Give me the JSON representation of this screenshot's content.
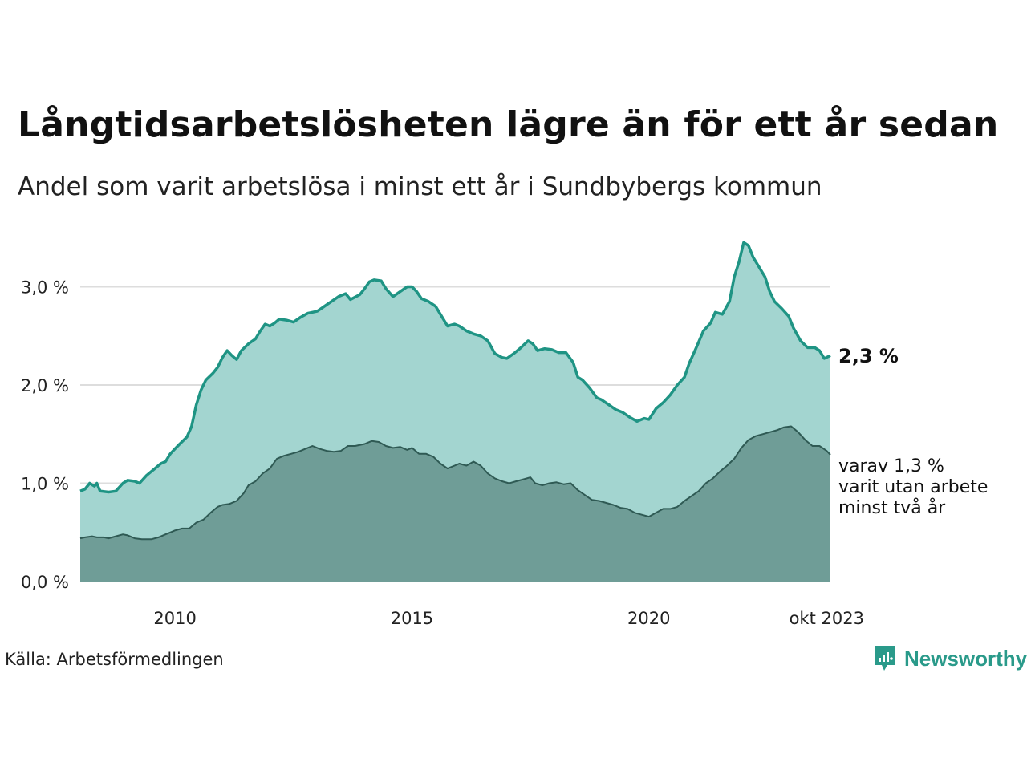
{
  "title": "Långtidsarbetslösheten lägre än för ett år sedan",
  "subtitle": "Andel som varit arbetslösa i minst ett år i Sundbybergs kommun",
  "source": "Källa: Arbetsförmedlingen",
  "brand": "Newsworthy",
  "colors": {
    "upper_fill": "#a3d5d0",
    "upper_line": "#1f9484",
    "lower_fill": "#6f9d97",
    "lower_line": "#2f5a54",
    "grid": "#dddddd",
    "brand": "#2a9a8a"
  },
  "chart_data": {
    "type": "area",
    "title": "Långtidsarbetslösheten lägre än för ett år sedan",
    "ylim": [
      0,
      3.5
    ],
    "xlim": [
      2008.0,
      2023.83
    ],
    "y_ticks": [
      {
        "value": 0,
        "label": "0,0 %"
      },
      {
        "value": 1,
        "label": "1,0 %"
      },
      {
        "value": 2,
        "label": "2,0 %"
      },
      {
        "value": 3,
        "label": "3,0 %"
      }
    ],
    "x_ticks": [
      {
        "value": 2010.0,
        "label": "2010"
      },
      {
        "value": 2015.0,
        "label": "2015"
      },
      {
        "value": 2020.0,
        "label": "2020"
      },
      {
        "value": 2023.75,
        "label": "okt 2023"
      }
    ],
    "series": [
      {
        "name": "Minst ett år",
        "points": [
          [
            2008.0,
            0.92
          ],
          [
            2008.1,
            0.94
          ],
          [
            2008.2,
            1.0
          ],
          [
            2008.3,
            0.97
          ],
          [
            2008.35,
            1.0
          ],
          [
            2008.42,
            0.92
          ],
          [
            2008.6,
            0.91
          ],
          [
            2008.75,
            0.92
          ],
          [
            2008.9,
            1.0
          ],
          [
            2009.0,
            1.03
          ],
          [
            2009.15,
            1.02
          ],
          [
            2009.25,
            1.0
          ],
          [
            2009.4,
            1.08
          ],
          [
            2009.55,
            1.14
          ],
          [
            2009.7,
            1.2
          ],
          [
            2009.8,
            1.22
          ],
          [
            2009.9,
            1.3
          ],
          [
            2010.0,
            1.35
          ],
          [
            2010.1,
            1.4
          ],
          [
            2010.25,
            1.47
          ],
          [
            2010.35,
            1.58
          ],
          [
            2010.45,
            1.8
          ],
          [
            2010.55,
            1.95
          ],
          [
            2010.65,
            2.05
          ],
          [
            2010.8,
            2.12
          ],
          [
            2010.9,
            2.18
          ],
          [
            2011.0,
            2.28
          ],
          [
            2011.1,
            2.35
          ],
          [
            2011.2,
            2.3
          ],
          [
            2011.3,
            2.26
          ],
          [
            2011.4,
            2.35
          ],
          [
            2011.55,
            2.42
          ],
          [
            2011.7,
            2.47
          ],
          [
            2011.8,
            2.55
          ],
          [
            2011.9,
            2.62
          ],
          [
            2012.0,
            2.6
          ],
          [
            2012.1,
            2.63
          ],
          [
            2012.2,
            2.67
          ],
          [
            2012.35,
            2.66
          ],
          [
            2012.5,
            2.64
          ],
          [
            2012.65,
            2.69
          ],
          [
            2012.8,
            2.73
          ],
          [
            2013.0,
            2.75
          ],
          [
            2013.15,
            2.8
          ],
          [
            2013.3,
            2.85
          ],
          [
            2013.45,
            2.9
          ],
          [
            2013.6,
            2.93
          ],
          [
            2013.7,
            2.87
          ],
          [
            2013.9,
            2.92
          ],
          [
            2014.0,
            2.98
          ],
          [
            2014.1,
            3.05
          ],
          [
            2014.2,
            3.07
          ],
          [
            2014.35,
            3.06
          ],
          [
            2014.45,
            2.98
          ],
          [
            2014.6,
            2.9
          ],
          [
            2014.75,
            2.95
          ],
          [
            2014.9,
            3.0
          ],
          [
            2015.0,
            3.0
          ],
          [
            2015.1,
            2.95
          ],
          [
            2015.2,
            2.88
          ],
          [
            2015.35,
            2.85
          ],
          [
            2015.5,
            2.8
          ],
          [
            2015.6,
            2.72
          ],
          [
            2015.75,
            2.6
          ],
          [
            2015.9,
            2.62
          ],
          [
            2016.0,
            2.6
          ],
          [
            2016.15,
            2.55
          ],
          [
            2016.3,
            2.52
          ],
          [
            2016.45,
            2.5
          ],
          [
            2016.6,
            2.45
          ],
          [
            2016.75,
            2.32
          ],
          [
            2016.9,
            2.28
          ],
          [
            2017.0,
            2.27
          ],
          [
            2017.15,
            2.32
          ],
          [
            2017.3,
            2.38
          ],
          [
            2017.45,
            2.45
          ],
          [
            2017.55,
            2.42
          ],
          [
            2017.65,
            2.35
          ],
          [
            2017.8,
            2.37
          ],
          [
            2017.95,
            2.36
          ],
          [
            2018.1,
            2.33
          ],
          [
            2018.25,
            2.33
          ],
          [
            2018.4,
            2.23
          ],
          [
            2018.5,
            2.08
          ],
          [
            2018.6,
            2.05
          ],
          [
            2018.75,
            1.97
          ],
          [
            2018.9,
            1.87
          ],
          [
            2019.0,
            1.85
          ],
          [
            2019.15,
            1.8
          ],
          [
            2019.3,
            1.75
          ],
          [
            2019.45,
            1.72
          ],
          [
            2019.6,
            1.67
          ],
          [
            2019.75,
            1.63
          ],
          [
            2019.9,
            1.66
          ],
          [
            2020.0,
            1.65
          ],
          [
            2020.15,
            1.76
          ],
          [
            2020.3,
            1.82
          ],
          [
            2020.45,
            1.9
          ],
          [
            2020.6,
            2.0
          ],
          [
            2020.75,
            2.08
          ],
          [
            2020.85,
            2.22
          ],
          [
            2021.0,
            2.38
          ],
          [
            2021.15,
            2.55
          ],
          [
            2021.3,
            2.63
          ],
          [
            2021.4,
            2.74
          ],
          [
            2021.55,
            2.72
          ],
          [
            2021.7,
            2.85
          ],
          [
            2021.8,
            3.1
          ],
          [
            2021.9,
            3.25
          ],
          [
            2022.0,
            3.45
          ],
          [
            2022.1,
            3.42
          ],
          [
            2022.2,
            3.3
          ],
          [
            2022.3,
            3.22
          ],
          [
            2022.45,
            3.1
          ],
          [
            2022.55,
            2.95
          ],
          [
            2022.65,
            2.85
          ],
          [
            2022.8,
            2.78
          ],
          [
            2022.95,
            2.7
          ],
          [
            2023.05,
            2.58
          ],
          [
            2023.2,
            2.45
          ],
          [
            2023.35,
            2.38
          ],
          [
            2023.5,
            2.38
          ],
          [
            2023.6,
            2.35
          ],
          [
            2023.7,
            2.27
          ],
          [
            2023.83,
            2.3
          ]
        ]
      },
      {
        "name": "Minst två år",
        "points": [
          [
            2008.0,
            0.44
          ],
          [
            2008.1,
            0.45
          ],
          [
            2008.25,
            0.46
          ],
          [
            2008.35,
            0.45
          ],
          [
            2008.5,
            0.45
          ],
          [
            2008.6,
            0.44
          ],
          [
            2008.75,
            0.46
          ],
          [
            2008.9,
            0.48
          ],
          [
            2009.0,
            0.47
          ],
          [
            2009.15,
            0.44
          ],
          [
            2009.3,
            0.43
          ],
          [
            2009.5,
            0.43
          ],
          [
            2009.65,
            0.45
          ],
          [
            2009.8,
            0.48
          ],
          [
            2009.9,
            0.5
          ],
          [
            2010.0,
            0.52
          ],
          [
            2010.15,
            0.54
          ],
          [
            2010.3,
            0.54
          ],
          [
            2010.45,
            0.6
          ],
          [
            2010.6,
            0.63
          ],
          [
            2010.75,
            0.7
          ],
          [
            2010.9,
            0.76
          ],
          [
            2011.0,
            0.78
          ],
          [
            2011.15,
            0.79
          ],
          [
            2011.3,
            0.82
          ],
          [
            2011.45,
            0.9
          ],
          [
            2011.55,
            0.98
          ],
          [
            2011.7,
            1.02
          ],
          [
            2011.85,
            1.1
          ],
          [
            2012.0,
            1.15
          ],
          [
            2012.15,
            1.25
          ],
          [
            2012.3,
            1.28
          ],
          [
            2012.45,
            1.3
          ],
          [
            2012.6,
            1.32
          ],
          [
            2012.75,
            1.35
          ],
          [
            2012.9,
            1.38
          ],
          [
            2013.05,
            1.35
          ],
          [
            2013.2,
            1.33
          ],
          [
            2013.35,
            1.32
          ],
          [
            2013.5,
            1.33
          ],
          [
            2013.65,
            1.38
          ],
          [
            2013.8,
            1.38
          ],
          [
            2014.0,
            1.4
          ],
          [
            2014.15,
            1.43
          ],
          [
            2014.3,
            1.42
          ],
          [
            2014.45,
            1.38
          ],
          [
            2014.6,
            1.36
          ],
          [
            2014.75,
            1.37
          ],
          [
            2014.9,
            1.34
          ],
          [
            2015.0,
            1.36
          ],
          [
            2015.15,
            1.3
          ],
          [
            2015.3,
            1.3
          ],
          [
            2015.45,
            1.27
          ],
          [
            2015.6,
            1.2
          ],
          [
            2015.75,
            1.15
          ],
          [
            2015.9,
            1.18
          ],
          [
            2016.0,
            1.2
          ],
          [
            2016.15,
            1.18
          ],
          [
            2016.3,
            1.22
          ],
          [
            2016.45,
            1.18
          ],
          [
            2016.6,
            1.1
          ],
          [
            2016.75,
            1.05
          ],
          [
            2016.9,
            1.02
          ],
          [
            2017.05,
            1.0
          ],
          [
            2017.2,
            1.02
          ],
          [
            2017.35,
            1.04
          ],
          [
            2017.5,
            1.06
          ],
          [
            2017.6,
            1.0
          ],
          [
            2017.75,
            0.98
          ],
          [
            2017.9,
            1.0
          ],
          [
            2018.05,
            1.01
          ],
          [
            2018.2,
            0.99
          ],
          [
            2018.35,
            1.0
          ],
          [
            2018.5,
            0.93
          ],
          [
            2018.65,
            0.88
          ],
          [
            2018.8,
            0.83
          ],
          [
            2018.95,
            0.82
          ],
          [
            2019.1,
            0.8
          ],
          [
            2019.25,
            0.78
          ],
          [
            2019.4,
            0.75
          ],
          [
            2019.55,
            0.74
          ],
          [
            2019.7,
            0.7
          ],
          [
            2019.85,
            0.68
          ],
          [
            2020.0,
            0.66
          ],
          [
            2020.15,
            0.7
          ],
          [
            2020.3,
            0.74
          ],
          [
            2020.45,
            0.74
          ],
          [
            2020.6,
            0.76
          ],
          [
            2020.75,
            0.82
          ],
          [
            2020.9,
            0.87
          ],
          [
            2021.05,
            0.92
          ],
          [
            2021.2,
            1.0
          ],
          [
            2021.35,
            1.05
          ],
          [
            2021.5,
            1.12
          ],
          [
            2021.65,
            1.18
          ],
          [
            2021.8,
            1.25
          ],
          [
            2021.95,
            1.36
          ],
          [
            2022.1,
            1.44
          ],
          [
            2022.25,
            1.48
          ],
          [
            2022.4,
            1.5
          ],
          [
            2022.55,
            1.52
          ],
          [
            2022.7,
            1.54
          ],
          [
            2022.85,
            1.57
          ],
          [
            2023.0,
            1.58
          ],
          [
            2023.15,
            1.52
          ],
          [
            2023.3,
            1.44
          ],
          [
            2023.45,
            1.38
          ],
          [
            2023.6,
            1.38
          ],
          [
            2023.75,
            1.33
          ],
          [
            2023.83,
            1.29
          ]
        ]
      }
    ],
    "annotations": {
      "main_value": "2,3 %",
      "sub_lines": [
        "varav 1,3 %",
        "varit utan arbete",
        "minst två år"
      ]
    }
  }
}
